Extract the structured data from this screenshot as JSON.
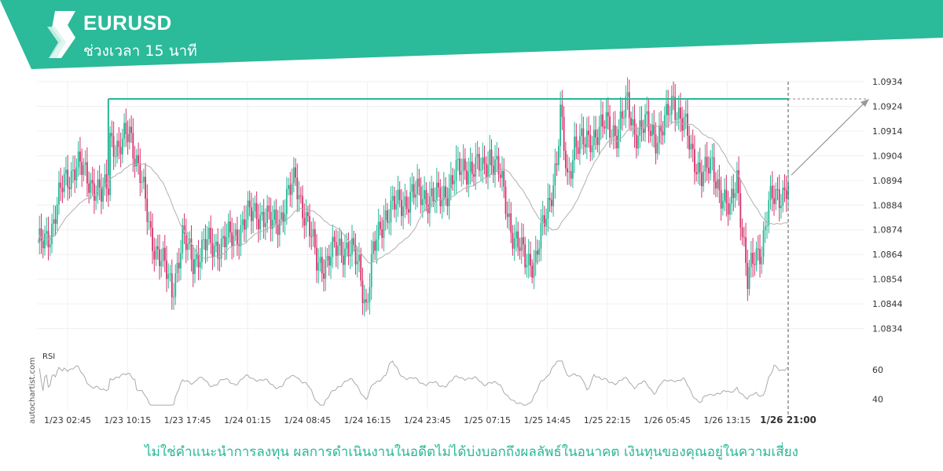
{
  "header": {
    "symbol": "EURUSD",
    "interval_label": "ช่วงเวลา 15 นาที",
    "banner_color": "#2bba9a"
  },
  "side_label": "autochartist.com",
  "disclaimer": "ไม่ใช่คำแนะนำการลงทุน ผลการดำเนินงานในอดีตไม่ได้บ่งบอกถึงผลลัพธ์ในอนาคต เงินทุนของคุณอยู่ในความเสี่ยง",
  "chart_data": {
    "type": "candlestick",
    "price_axis": {
      "ticks": [
        1.0934,
        1.0924,
        1.0914,
        1.0904,
        1.0894,
        1.0884,
        1.0874,
        1.0864,
        1.0854,
        1.0844,
        1.0834
      ],
      "range": [
        1.0831,
        1.0934
      ]
    },
    "time_axis": {
      "ticks": [
        "1/23 02:45",
        "1/23 10:15",
        "1/23 17:45",
        "1/24 01:15",
        "1/24 08:45",
        "1/24 16:15",
        "1/24 23:45",
        "1/25 07:15",
        "1/25 14:45",
        "1/25 22:15",
        "1/26 05:45",
        "1/26 13:15"
      ],
      "highlight": "1/26 21:00"
    },
    "resistance_level": 1.0927,
    "forecast_target": 1.0927,
    "price_path": [
      [
        0,
        1.0866
      ],
      [
        8,
        1.0875
      ],
      [
        15,
        1.0894
      ],
      [
        22,
        1.09
      ],
      [
        30,
        1.0894
      ],
      [
        36,
        1.0887
      ],
      [
        40,
        1.0893
      ],
      [
        41,
        1.0913
      ],
      [
        46,
        1.0905
      ],
      [
        52,
        1.0915
      ],
      [
        58,
        1.0896
      ],
      [
        64,
        1.0872
      ],
      [
        72,
        1.0858
      ],
      [
        76,
        1.085
      ],
      [
        82,
        1.087
      ],
      [
        88,
        1.0862
      ],
      [
        96,
        1.0868
      ],
      [
        104,
        1.0868
      ],
      [
        112,
        1.0872
      ],
      [
        118,
        1.0878
      ],
      [
        124,
        1.0882
      ],
      [
        132,
        1.0876
      ],
      [
        138,
        1.088
      ],
      [
        146,
        1.0895
      ],
      [
        152,
        1.0878
      ],
      [
        158,
        1.0862
      ],
      [
        164,
        1.086
      ],
      [
        170,
        1.0868
      ],
      [
        176,
        1.0866
      ],
      [
        182,
        1.086
      ],
      [
        186,
        1.0843
      ],
      [
        190,
        1.0864
      ],
      [
        196,
        1.088
      ],
      [
        204,
        1.0884
      ],
      [
        212,
        1.0888
      ],
      [
        220,
        1.0888
      ],
      [
        228,
        1.0886
      ],
      [
        236,
        1.0896
      ],
      [
        244,
        1.09
      ],
      [
        252,
        1.0898
      ],
      [
        256,
        1.0905
      ],
      [
        262,
        1.0895
      ],
      [
        266,
        1.0882
      ],
      [
        270,
        1.087
      ],
      [
        276,
        1.0862
      ],
      [
        282,
        1.0862
      ],
      [
        288,
        1.088
      ],
      [
        294,
        1.0902
      ],
      [
        296,
        1.092
      ],
      [
        300,
        1.0893
      ],
      [
        304,
        1.091
      ],
      [
        310,
        1.0908
      ],
      [
        316,
        1.0914
      ],
      [
        322,
        1.0916
      ],
      [
        328,
        1.0914
      ],
      [
        334,
        1.0924
      ],
      [
        338,
        1.0914
      ],
      [
        344,
        1.0916
      ],
      [
        350,
        1.0912
      ],
      [
        356,
        1.0918
      ],
      [
        360,
        1.0926
      ],
      [
        366,
        1.0918
      ],
      [
        370,
        1.0904
      ],
      [
        376,
        1.0898
      ],
      [
        382,
        1.0898
      ],
      [
        388,
        1.0888
      ],
      [
        392,
        1.088
      ],
      [
        396,
        1.0896
      ],
      [
        400,
        1.0868
      ],
      [
        402,
        1.0853
      ],
      [
        406,
        1.0862
      ],
      [
        410,
        1.0868
      ],
      [
        414,
        1.0884
      ],
      [
        420,
        1.0888
      ],
      [
        425,
        1.0893
      ]
    ],
    "moving_average": {
      "color": "#b0b0b0"
    },
    "rsi": {
      "label": "RSI",
      "ticks": [
        60,
        40
      ],
      "range": [
        35,
        67
      ]
    },
    "colors": {
      "up": "#27b897",
      "down": "#d6336c",
      "resistance": "#27b897",
      "forecast": "#999999",
      "grid": "#f0f0f0"
    }
  }
}
